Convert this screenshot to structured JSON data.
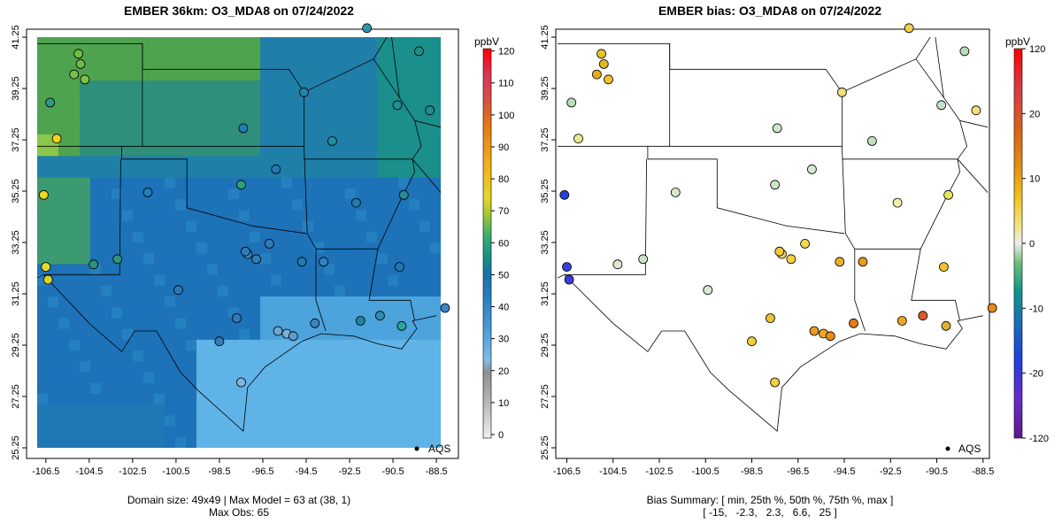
{
  "left_panel": {
    "title": "EMBER 36km: O3_MDA8 on 07/24/2022",
    "caption_line1": "Domain size: 49x49 | Max Model = 63 at (38, 1)",
    "caption_line2": "Max Obs: 65",
    "legend_label": "AQS",
    "colorbar_unit": "ppbV",
    "colorbar_ticks": [
      "0",
      "10",
      "20",
      "30",
      "40",
      "50",
      "60",
      "70",
      "80",
      "90",
      "100",
      "110",
      "120"
    ]
  },
  "right_panel": {
    "title": "EMBER bias: O3_MDA8 on 07/24/2022",
    "caption_line1": "Bias Summary: [ min, 25th %, 50th %, 75th %, max ]",
    "caption_line2": "[ -15,   -2.3,   2.3,   6.6,   25 ]",
    "legend_label": "AQS",
    "colorbar_unit": "ppbV",
    "colorbar_ticks": [
      "120",
      "20",
      "10",
      "0",
      "-10",
      "-20",
      "-120"
    ]
  },
  "x_ticks": [
    "-106.5",
    "-104.5",
    "-102.5",
    "-100.5",
    "-98.5",
    "-96.5",
    "-94.5",
    "-92.5",
    "-90.5",
    "-88.5"
  ],
  "y_ticks": [
    "41.25",
    "39.25",
    "37.25",
    "35.25",
    "33.25",
    "31.25",
    "29.25",
    "27.25",
    "25.25"
  ],
  "colors": {
    "conc_scale": [
      "#f7f7f7",
      "#b5b5b5",
      "#8c8c8c",
      "#5fb3e6",
      "#3a8fd0",
      "#1f78b4",
      "#119189",
      "#35b779",
      "#a8c93b",
      "#f1d21f",
      "#f3a11e",
      "#e0611e",
      "#d7434e",
      "#e02233",
      "#ff0000"
    ],
    "bias_scale": [
      "#6a0dad",
      "#2020e0",
      "#1f78b4",
      "#1a9a8a",
      "#5fbf7a",
      "#cfe6cf",
      "#f7f7f7",
      "#f2e58a",
      "#f1c21c",
      "#e38d10",
      "#d96c1a",
      "#d9443a",
      "#ff0000"
    ]
  }
}
